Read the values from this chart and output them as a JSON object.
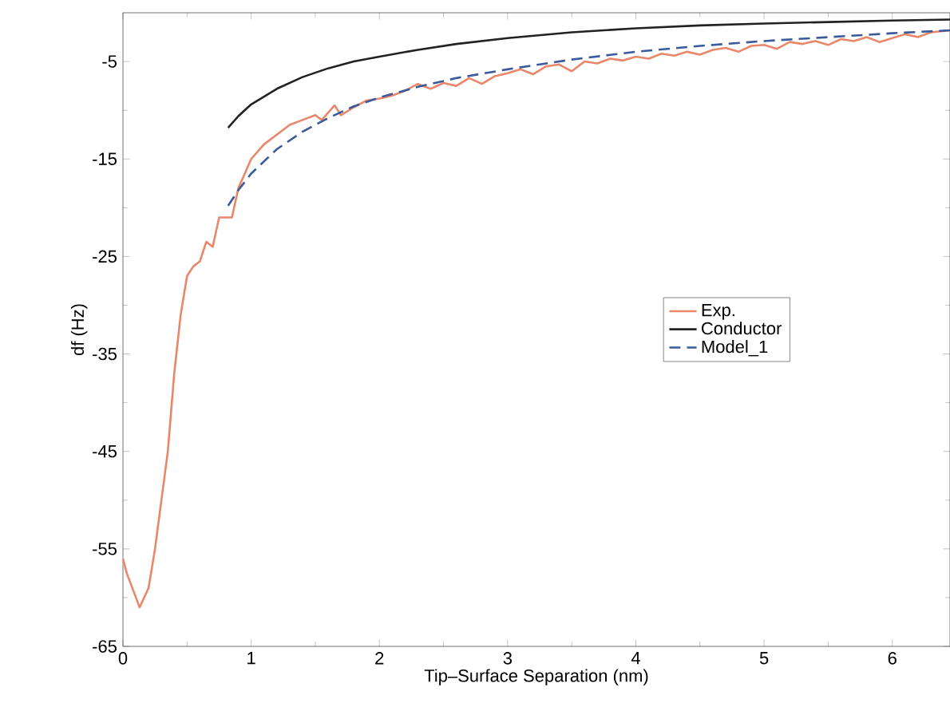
{
  "chart_data": {
    "type": "line",
    "xlabel": "Tip–Surface Separation (nm)",
    "ylabel": "df (Hz)",
    "xlim": [
      0,
      6.45
    ],
    "ylim": [
      -65,
      0
    ],
    "xticks": [
      0,
      1,
      2,
      3,
      4,
      5,
      6
    ],
    "yticks": [
      -65,
      -55,
      -45,
      -35,
      -25,
      -15,
      -5
    ],
    "legend": "right",
    "grid": false,
    "series": [
      {
        "name": "Exp.",
        "color": "#e8876a",
        "line_style": "solid",
        "x": [
          0,
          0.03,
          0.13,
          0.2,
          0.25,
          0.3,
          0.35,
          0.4,
          0.45,
          0.5,
          0.55,
          0.6,
          0.65,
          0.7,
          0.75,
          0.8,
          0.85,
          0.9,
          1.0,
          1.1,
          1.2,
          1.3,
          1.4,
          1.5,
          1.55,
          1.65,
          1.7,
          1.8,
          1.9,
          2.0,
          2.1,
          2.2,
          2.3,
          2.4,
          2.5,
          2.6,
          2.7,
          2.8,
          2.9,
          3.0,
          3.1,
          3.2,
          3.3,
          3.4,
          3.5,
          3.6,
          3.7,
          3.8,
          3.9,
          4.0,
          4.1,
          4.2,
          4.3,
          4.4,
          4.5,
          4.6,
          4.7,
          4.8,
          4.9,
          5.0,
          5.1,
          5.2,
          5.3,
          5.4,
          5.5,
          5.6,
          5.7,
          5.8,
          5.9,
          6.0,
          6.1,
          6.2,
          6.3,
          6.45
        ],
        "values": [
          -56,
          -57.5,
          -61,
          -59,
          -55,
          -50,
          -45,
          -37,
          -31,
          -27,
          -26,
          -25.5,
          -23.5,
          -24,
          -21,
          -21,
          -21,
          -18,
          -15,
          -13.5,
          -12.5,
          -11.5,
          -11,
          -10.5,
          -11,
          -9.5,
          -10.5,
          -9.7,
          -9,
          -8.8,
          -8.5,
          -8,
          -7.3,
          -7.8,
          -7.2,
          -7.5,
          -6.7,
          -7.3,
          -6.5,
          -6.2,
          -5.8,
          -6.3,
          -5.5,
          -5.3,
          -6,
          -5,
          -5.2,
          -4.7,
          -4.9,
          -4.5,
          -4.7,
          -4.2,
          -4.4,
          -4,
          -4.3,
          -3.8,
          -3.6,
          -4.0,
          -3.4,
          -3.3,
          -3.7,
          -3.0,
          -3.2,
          -2.9,
          -3.3,
          -2.7,
          -2.9,
          -2.5,
          -3.0,
          -2.6,
          -2.2,
          -2.5,
          -2.0,
          -1.8
        ]
      },
      {
        "name": "Conductor",
        "color": "#222222",
        "line_style": "solid",
        "x": [
          0.82,
          0.9,
          1,
          1.2,
          1.4,
          1.6,
          1.8,
          2,
          2.3,
          2.6,
          3,
          3.5,
          4,
          4.5,
          5,
          5.5,
          6,
          6.45
        ],
        "values": [
          -11.8,
          -10.6,
          -9.4,
          -7.8,
          -6.6,
          -5.7,
          -5.0,
          -4.5,
          -3.8,
          -3.2,
          -2.6,
          -2.0,
          -1.6,
          -1.3,
          -1.1,
          -0.95,
          -0.8,
          -0.7
        ]
      },
      {
        "name": "Model_1",
        "color": "#3a5a9c",
        "line_style": "dashed",
        "x": [
          0.82,
          0.9,
          1,
          1.2,
          1.4,
          1.6,
          1.8,
          2,
          2.3,
          2.6,
          3,
          3.5,
          4,
          4.5,
          5,
          5.5,
          6,
          6.45
        ],
        "values": [
          -19.8,
          -18.2,
          -16.5,
          -14,
          -12.2,
          -10.8,
          -9.6,
          -8.7,
          -7.6,
          -6.7,
          -5.8,
          -4.8,
          -4.0,
          -3.4,
          -2.9,
          -2.5,
          -2.1,
          -1.8
        ]
      }
    ]
  }
}
